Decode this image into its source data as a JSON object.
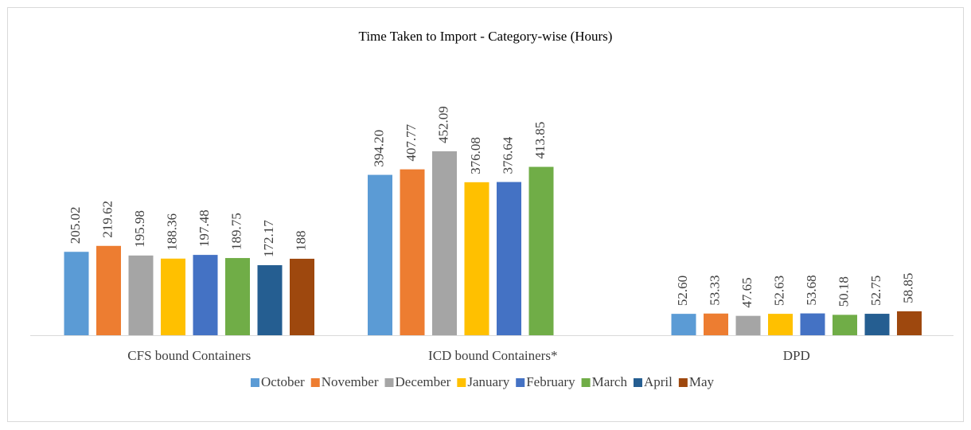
{
  "chart_data": {
    "type": "bar",
    "title": "Time Taken to Import - Category-wise (Hours)",
    "categories": [
      "CFS bound Containers",
      "ICD bound Containers*",
      "DPD"
    ],
    "legend": "bottom",
    "series": [
      {
        "name": "October",
        "color": "#5b9bd5",
        "values": [
          205.02,
          394.2,
          52.6
        ],
        "value_labels": [
          "205.02",
          "394.20",
          "52.60"
        ]
      },
      {
        "name": "November",
        "color": "#ed7d31",
        "values": [
          219.62,
          407.77,
          53.33
        ],
        "value_labels": [
          "219.62",
          "407.77",
          "53.33"
        ]
      },
      {
        "name": "December",
        "color": "#a5a5a5",
        "values": [
          195.98,
          452.09,
          47.65
        ],
        "value_labels": [
          "195.98",
          "452.09",
          "47.65"
        ]
      },
      {
        "name": "January",
        "color": "#ffc000",
        "values": [
          188.36,
          376.08,
          52.63
        ],
        "value_labels": [
          "188.36",
          "376.08",
          "52.63"
        ]
      },
      {
        "name": "February",
        "color": "#4472c4",
        "values": [
          197.48,
          376.64,
          53.68
        ],
        "value_labels": [
          "197.48",
          "376.64",
          "53.68"
        ]
      },
      {
        "name": "March",
        "color": "#70ad47",
        "values": [
          189.75,
          413.85,
          50.18
        ],
        "value_labels": [
          "189.75",
          "413.85",
          "50.18"
        ]
      },
      {
        "name": "April",
        "color": "#255e91",
        "values": [
          172.17,
          null,
          52.75
        ],
        "value_labels": [
          "172.17",
          null,
          "52.75"
        ]
      },
      {
        "name": "May",
        "color": "#9e480e",
        "values": [
          188,
          null,
          58.85
        ],
        "value_labels": [
          "188",
          null,
          "58.85"
        ]
      }
    ]
  }
}
